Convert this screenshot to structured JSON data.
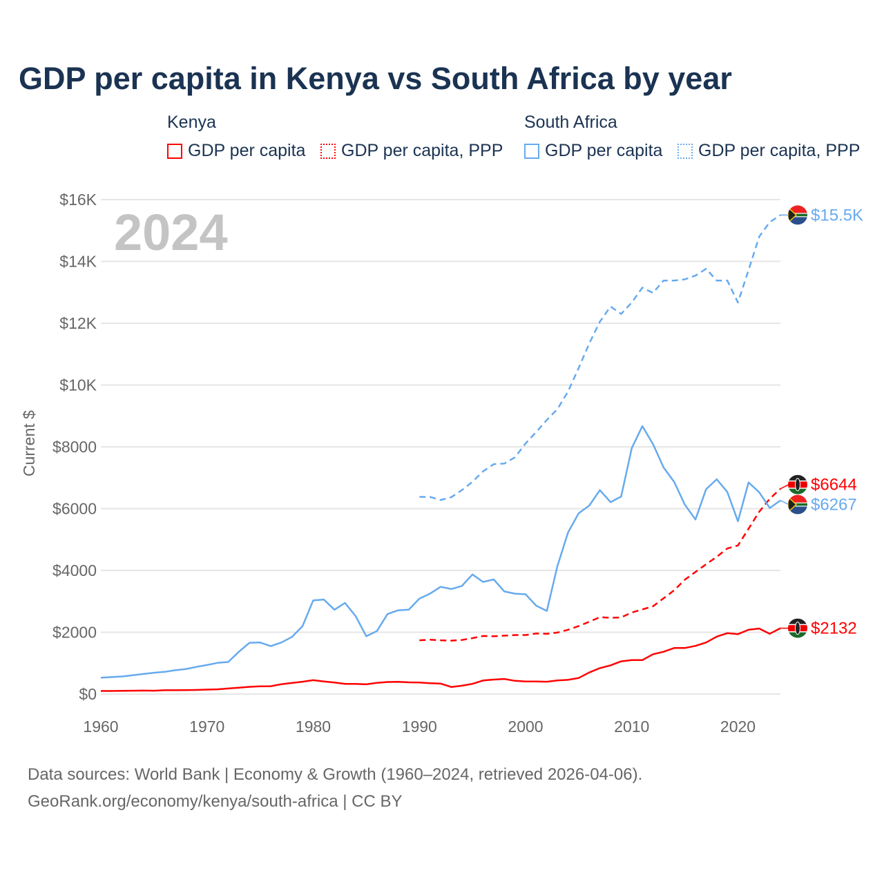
{
  "title": "GDP per capita in Kenya vs South Africa by year",
  "legend": {
    "groups": [
      {
        "name": "Kenya",
        "items": [
          "GDP per capita",
          "GDP per capita, PPP"
        ]
      },
      {
        "name": "South Africa",
        "items": [
          "GDP per capita",
          "GDP per capita, PPP"
        ]
      }
    ]
  },
  "year_watermark": "2024",
  "footer": {
    "line1": "Data sources: World Bank | Economy & Growth (1960–2024, retrieved 2026-04-06).",
    "line2": "GeoRank.org/economy/kenya/south-africa | CC BY"
  },
  "colors": {
    "kenya": "#ff0000",
    "south_africa": "#66aaee",
    "title": "#1b3352"
  },
  "chart_data": {
    "type": "line",
    "title": "GDP per capita in Kenya vs South Africa by year",
    "xlabel": "",
    "ylabel": "Current $",
    "xlim": [
      1960,
      2024
    ],
    "ylim": [
      0,
      16000
    ],
    "x_ticks": [
      1960,
      1970,
      1980,
      1990,
      2000,
      2010,
      2020
    ],
    "x_tick_labels": [
      "1960",
      "1970",
      "1980",
      "1990",
      "2000",
      "2010",
      "2020"
    ],
    "y_ticks": [
      0,
      2000,
      4000,
      6000,
      8000,
      10000,
      12000,
      14000,
      16000
    ],
    "y_tick_labels": [
      "$0",
      "$2000",
      "$4000",
      "$6000",
      "$8000",
      "$10K",
      "$12K",
      "$14K",
      "$16K"
    ],
    "grid": true,
    "legend_position": "top",
    "series": [
      {
        "name": "Kenya GDP per capita",
        "country": "kenya",
        "style": "solid",
        "end_label": "$2132",
        "start_year": 1960,
        "values": [
          100,
          100,
          105,
          110,
          115,
          110,
          125,
          125,
          130,
          135,
          145,
          155,
          180,
          205,
          235,
          250,
          255,
          320,
          360,
          400,
          450,
          410,
          375,
          330,
          330,
          315,
          365,
          390,
          395,
          380,
          375,
          350,
          340,
          230,
          270,
          330,
          440,
          470,
          490,
          430,
          410,
          410,
          400,
          440,
          460,
          520,
          700,
          840,
          930,
          1060,
          1100,
          1100,
          1290,
          1370,
          1490,
          1490,
          1560,
          1670,
          1860,
          1970,
          1940,
          2080,
          2120,
          1950,
          2132
        ]
      },
      {
        "name": "Kenya GDP per capita, PPP",
        "country": "kenya",
        "style": "dashed",
        "end_label": "$6644",
        "start_year": 1990,
        "values": [
          1740,
          1760,
          1740,
          1730,
          1750,
          1810,
          1880,
          1870,
          1890,
          1910,
          1910,
          1960,
          1950,
          1990,
          2080,
          2200,
          2340,
          2490,
          2470,
          2480,
          2640,
          2740,
          2840,
          3100,
          3360,
          3700,
          3950,
          4200,
          4440,
          4710,
          4810,
          5350,
          5900,
          6320,
          6644
        ]
      },
      {
        "name": "South Africa GDP per capita",
        "country": "south_africa",
        "style": "solid",
        "end_label": "$6267",
        "start_year": 1960,
        "values": [
          530,
          550,
          570,
          610,
          650,
          690,
          720,
          770,
          810,
          880,
          940,
          1010,
          1040,
          1370,
          1660,
          1670,
          1550,
          1670,
          1850,
          2200,
          3030,
          3060,
          2730,
          2950,
          2520,
          1870,
          2040,
          2590,
          2710,
          2730,
          3090,
          3250,
          3470,
          3400,
          3500,
          3870,
          3630,
          3710,
          3320,
          3250,
          3230,
          2860,
          2690,
          4140,
          5230,
          5850,
          6100,
          6600,
          6210,
          6390,
          7960,
          8670,
          8090,
          7330,
          6860,
          6130,
          5650,
          6630,
          6950,
          6540,
          5590,
          6850,
          6530,
          6020,
          6267
        ]
      },
      {
        "name": "South Africa GDP per capita, PPP",
        "country": "south_africa",
        "style": "dashed",
        "end_label": "$15.5K",
        "start_year": 1990,
        "values": [
          6380,
          6380,
          6280,
          6370,
          6600,
          6870,
          7210,
          7440,
          7460,
          7660,
          8110,
          8480,
          8870,
          9220,
          9790,
          10550,
          11350,
          12050,
          12540,
          12300,
          12670,
          13150,
          12980,
          13380,
          13380,
          13420,
          13540,
          13760,
          13380,
          13380,
          12670,
          13720,
          14800,
          15270,
          15500
        ]
      }
    ]
  }
}
